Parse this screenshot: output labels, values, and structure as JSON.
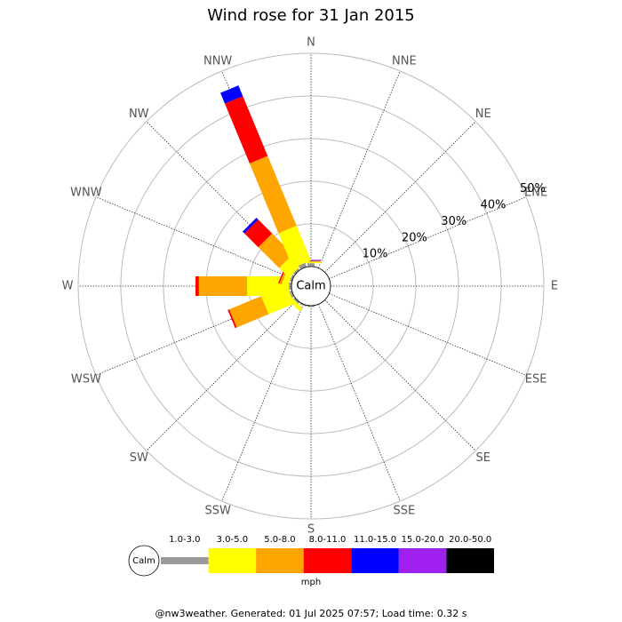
{
  "chart_data": {
    "type": "windrose",
    "title": "Wind rose for 31 Jan 2015",
    "calm_label": "Calm",
    "unit": "mph",
    "footer": "@nw3weather. Generated: 01 Jul 2025 07:57; Load time: 0.32 s",
    "categories": [
      "N",
      "NNE",
      "NE",
      "ENE",
      "E",
      "ESE",
      "SE",
      "SSE",
      "S",
      "SSW",
      "SW",
      "WSW",
      "W",
      "WNW",
      "NW",
      "NNW"
    ],
    "rlim": [
      0,
      50
    ],
    "rticks": [
      {
        "value": 10,
        "label": "10%"
      },
      {
        "value": 20,
        "label": "20%"
      },
      {
        "value": 30,
        "label": "30%"
      },
      {
        "value": 40,
        "label": "40%"
      },
      {
        "value": 50,
        "label": "50%"
      }
    ],
    "series": [
      {
        "name": "1.0-3.0",
        "color": "#999999",
        "values": [
          0.8,
          0,
          0,
          0,
          0,
          0,
          0,
          0,
          0.3,
          0.3,
          0.5,
          0.6,
          0.6,
          0.5,
          0.5,
          1.0
        ]
      },
      {
        "name": "3.0-5.0",
        "color": "#ffff00",
        "values": [
          0.3,
          0,
          0,
          0,
          0,
          0,
          0,
          0,
          0,
          0,
          1.0,
          6.5,
          9.8,
          1.5,
          3.2,
          8.8
        ]
      },
      {
        "name": "5.0-8.0",
        "color": "#ffa500",
        "values": [
          0.2,
          0,
          0,
          0,
          0,
          0,
          0,
          0,
          0,
          0,
          0,
          8.1,
          11.3,
          0.5,
          6.9,
          17.7
        ]
      },
      {
        "name": "8.0-11.0",
        "color": "#ff0000",
        "values": [
          0.1,
          0,
          0,
          0,
          0,
          0,
          0,
          0,
          0,
          0,
          0,
          0.4,
          0.8,
          0.3,
          4.6,
          15.2
        ]
      },
      {
        "name": "11.0-15.0",
        "color": "#0000ff",
        "values": [
          0.1,
          0,
          0,
          0,
          0,
          0,
          0,
          0,
          0,
          0,
          0,
          0,
          0,
          0,
          0.6,
          2.7
        ]
      },
      {
        "name": "15.0-20.0",
        "color": "#a020f0",
        "values": [
          0.1,
          0,
          0,
          0,
          0,
          0,
          0,
          0,
          0,
          0,
          0,
          0,
          0,
          0,
          0,
          0
        ]
      },
      {
        "name": "20.0-50.0",
        "color": "#000000",
        "values": [
          0,
          0,
          0,
          0,
          0,
          0,
          0,
          0,
          0,
          0,
          0,
          0,
          0,
          0,
          0,
          0
        ]
      }
    ]
  }
}
